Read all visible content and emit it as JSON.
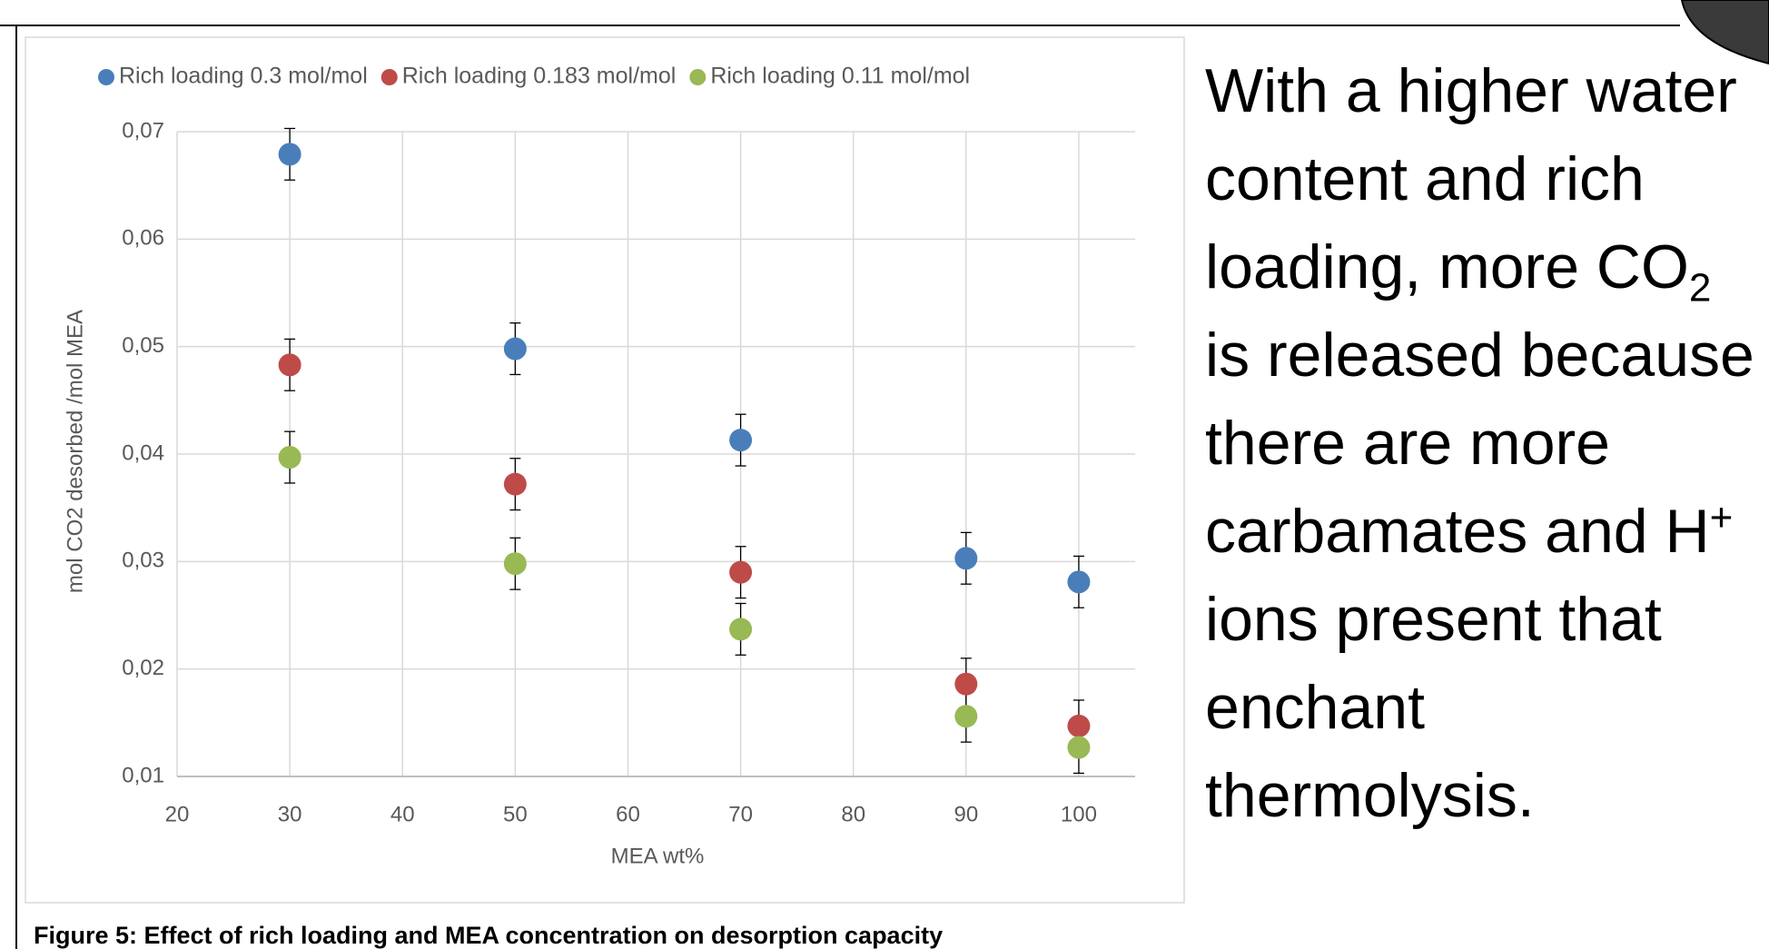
{
  "chart_data": {
    "type": "scatter",
    "x_label": "MEA wt%",
    "y_label": "mol CO2 desorbed /mol MEA",
    "xlim": [
      20,
      105
    ],
    "ylim": [
      0.01,
      0.07
    ],
    "xticks": [
      20,
      30,
      40,
      50,
      60,
      70,
      80,
      90,
      100
    ],
    "yticks": [
      {
        "value": 0.01,
        "label": "0,01"
      },
      {
        "value": 0.02,
        "label": "0,02"
      },
      {
        "value": 0.03,
        "label": "0,03"
      },
      {
        "value": 0.04,
        "label": "0,04"
      },
      {
        "value": 0.05,
        "label": "0,05"
      },
      {
        "value": 0.06,
        "label": "0,06"
      },
      {
        "value": 0.07,
        "label": "0,07"
      }
    ],
    "grid": true,
    "legend": "top",
    "series": [
      {
        "name": "Rich loading 0.3 mol/mol",
        "color": "#4a7ebb",
        "x": [
          30,
          50,
          70,
          90,
          100
        ],
        "values": [
          0.0679,
          0.0498,
          0.0413,
          0.0303,
          0.0281
        ],
        "errors": [
          0.0024,
          0.0024,
          0.0024,
          0.0024,
          0.0024
        ]
      },
      {
        "name": "Rich loading 0.183 mol/mol",
        "color": "#be4b48",
        "x": [
          30,
          50,
          70,
          90,
          100
        ],
        "values": [
          0.0483,
          0.0372,
          0.029,
          0.0186,
          0.0147
        ],
        "errors": [
          0.0024,
          0.0024,
          0.0024,
          0.0024,
          0.0024
        ]
      },
      {
        "name": "Rich loading 0.11 mol/mol",
        "color": "#98b954",
        "x": [
          30,
          50,
          70,
          90,
          100
        ],
        "values": [
          0.0397,
          0.0298,
          0.0237,
          0.0156,
          0.0127
        ],
        "errors": [
          0.0024,
          0.0024,
          0.0024,
          0.0024,
          0.0024
        ]
      }
    ]
  },
  "caption": "Figure 5: Effect of rich loading and MEA concentration on desorption capacity",
  "side_text": [
    "With a higher water content and rich loading, more CO",
    "2",
    " is released because there are more carbamates and H",
    "+",
    " ions present that enchant thermolysis."
  ]
}
